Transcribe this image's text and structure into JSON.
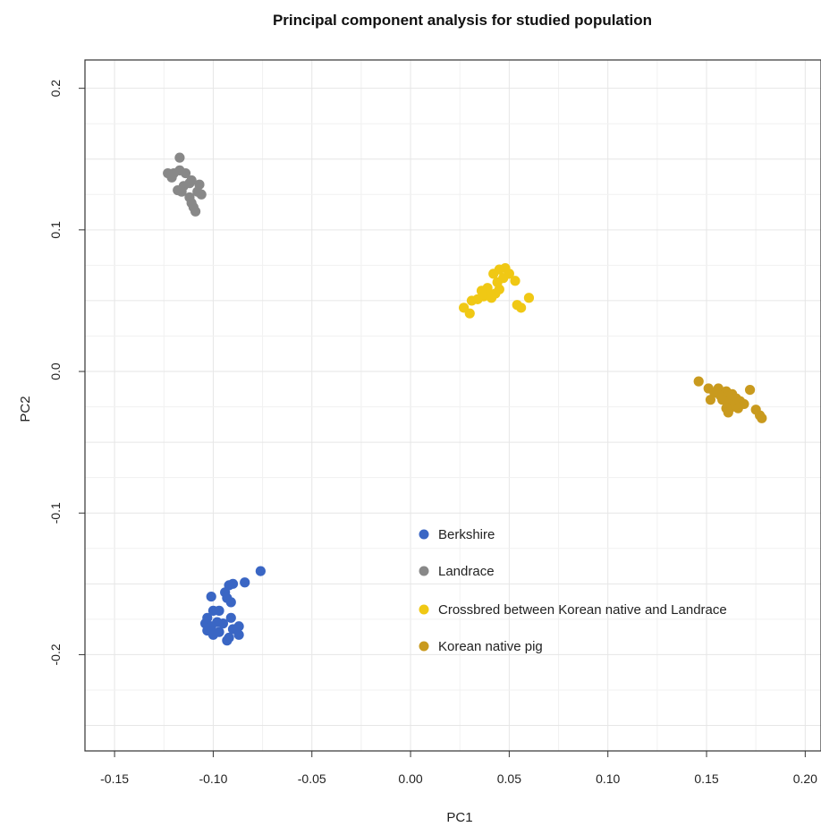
{
  "chart_data": {
    "type": "scatter",
    "title": "Principal component analysis for studied population",
    "xlabel": "PC1",
    "ylabel": "PC2",
    "xlim": [
      -0.165,
      0.208
    ],
    "ylim": [
      -0.268,
      0.22
    ],
    "xticks": [
      {
        "value": -0.15,
        "label": "-0.15"
      },
      {
        "value": -0.1,
        "label": "-0.10"
      },
      {
        "value": -0.05,
        "label": "-0.05"
      },
      {
        "value": 0.0,
        "label": "0.00"
      },
      {
        "value": 0.05,
        "label": "0.05"
      },
      {
        "value": 0.1,
        "label": "0.10"
      },
      {
        "value": 0.15,
        "label": "0.15"
      },
      {
        "value": 0.2,
        "label": "0.20"
      }
    ],
    "yticks": [
      {
        "value": -0.2,
        "label": "-0.2"
      },
      {
        "value": -0.1,
        "label": "-0.1"
      },
      {
        "value": 0.0,
        "label": "0.0"
      },
      {
        "value": 0.1,
        "label": "0.1"
      },
      {
        "value": 0.2,
        "label": "0.2"
      }
    ],
    "grid": true,
    "legend_position": "center-right",
    "series": [
      {
        "name": "Berkshire",
        "color": "#3a66c4",
        "points": [
          [
            -0.076,
            -0.141
          ],
          [
            -0.084,
            -0.149
          ],
          [
            -0.09,
            -0.15
          ],
          [
            -0.092,
            -0.151
          ],
          [
            -0.094,
            -0.156
          ],
          [
            -0.101,
            -0.159
          ],
          [
            -0.093,
            -0.16
          ],
          [
            -0.091,
            -0.163
          ],
          [
            -0.097,
            -0.169
          ],
          [
            -0.1,
            -0.169
          ],
          [
            -0.103,
            -0.174
          ],
          [
            -0.091,
            -0.174
          ],
          [
            -0.098,
            -0.177
          ],
          [
            -0.095,
            -0.178
          ],
          [
            -0.104,
            -0.178
          ],
          [
            -0.101,
            -0.18
          ],
          [
            -0.087,
            -0.18
          ],
          [
            -0.09,
            -0.182
          ],
          [
            -0.097,
            -0.184
          ],
          [
            -0.103,
            -0.183
          ],
          [
            -0.1,
            -0.186
          ],
          [
            -0.087,
            -0.186
          ],
          [
            -0.092,
            -0.188
          ],
          [
            -0.093,
            -0.19
          ]
        ]
      },
      {
        "name": "Landrace",
        "color": "#888888",
        "points": [
          [
            -0.117,
            0.151
          ],
          [
            -0.117,
            0.142
          ],
          [
            -0.114,
            0.14
          ],
          [
            -0.12,
            0.14
          ],
          [
            -0.123,
            0.14
          ],
          [
            -0.121,
            0.137
          ],
          [
            -0.111,
            0.135
          ],
          [
            -0.112,
            0.133
          ],
          [
            -0.107,
            0.132
          ],
          [
            -0.115,
            0.131
          ],
          [
            -0.116,
            0.127
          ],
          [
            -0.118,
            0.128
          ],
          [
            -0.108,
            0.127
          ],
          [
            -0.106,
            0.125
          ],
          [
            -0.112,
            0.123
          ],
          [
            -0.111,
            0.119
          ],
          [
            -0.11,
            0.116
          ],
          [
            -0.109,
            0.113
          ]
        ]
      },
      {
        "name": "Crossbred between Korean native and Landrace",
        "color": "#f0c814",
        "points": [
          [
            0.048,
            0.073
          ],
          [
            0.045,
            0.072
          ],
          [
            0.042,
            0.069
          ],
          [
            0.05,
            0.069
          ],
          [
            0.047,
            0.066
          ],
          [
            0.053,
            0.064
          ],
          [
            0.044,
            0.063
          ],
          [
            0.039,
            0.059
          ],
          [
            0.045,
            0.058
          ],
          [
            0.036,
            0.057
          ],
          [
            0.043,
            0.055
          ],
          [
            0.04,
            0.054
          ],
          [
            0.037,
            0.053
          ],
          [
            0.041,
            0.052
          ],
          [
            0.06,
            0.052
          ],
          [
            0.034,
            0.051
          ],
          [
            0.031,
            0.05
          ],
          [
            0.054,
            0.047
          ],
          [
            0.056,
            0.045
          ],
          [
            0.027,
            0.045
          ],
          [
            0.03,
            0.041
          ]
        ]
      },
      {
        "name": "Korean native pig",
        "color": "#c99a1e",
        "points": [
          [
            0.146,
            -0.007
          ],
          [
            0.151,
            -0.012
          ],
          [
            0.156,
            -0.012
          ],
          [
            0.154,
            -0.015
          ],
          [
            0.16,
            -0.014
          ],
          [
            0.163,
            -0.016
          ],
          [
            0.172,
            -0.013
          ],
          [
            0.157,
            -0.017
          ],
          [
            0.161,
            -0.018
          ],
          [
            0.158,
            -0.02
          ],
          [
            0.152,
            -0.02
          ],
          [
            0.165,
            -0.019
          ],
          [
            0.164,
            -0.022
          ],
          [
            0.161,
            -0.023
          ],
          [
            0.167,
            -0.021
          ],
          [
            0.169,
            -0.023
          ],
          [
            0.163,
            -0.025
          ],
          [
            0.16,
            -0.026
          ],
          [
            0.166,
            -0.026
          ],
          [
            0.175,
            -0.027
          ],
          [
            0.161,
            -0.029
          ],
          [
            0.177,
            -0.031
          ],
          [
            0.178,
            -0.033
          ]
        ]
      }
    ]
  }
}
